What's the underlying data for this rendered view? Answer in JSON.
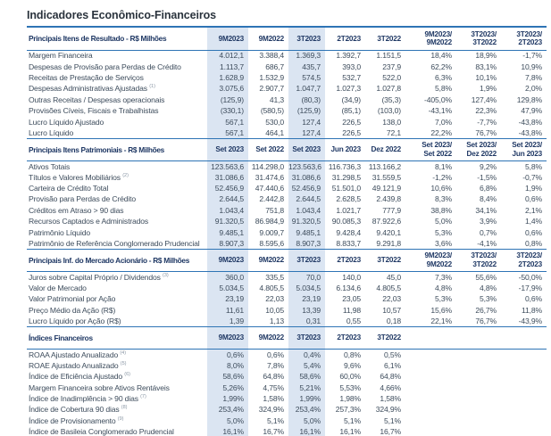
{
  "title": "Indicadores Econômico-Financeiros",
  "colors": {
    "accent_rule": "#2e74b5",
    "column_stripe": "#dbe5f2",
    "header_text": "#1f3864",
    "body_text": "#3d4c5c"
  },
  "table": {
    "striped_column_indexes": [
      0,
      2
    ],
    "sections": [
      {
        "header": "Principais Itens de Resultado - R$ Milhões",
        "columns": [
          [
            "9M2023"
          ],
          [
            "9M2022"
          ],
          [
            "3T2023"
          ],
          [
            "2T2023"
          ],
          [
            "3T2022"
          ],
          [
            "9M2023/",
            "9M2022"
          ],
          [
            "3T2023/",
            "3T2022"
          ],
          [
            "3T2023/",
            "2T2023"
          ]
        ],
        "rows": [
          {
            "label": "Margem Financeira",
            "sup": "",
            "values": [
              "4.012,1",
              "3.388,4",
              "1.369,3",
              "1.392,7",
              "1.151,5",
              "18,4%",
              "18,9%",
              "-1,7%"
            ]
          },
          {
            "label": "Despesas de Provisão para Perdas de Crédito",
            "sup": "",
            "values": [
              "1.113,7",
              "686,7",
              "435,7",
              "393,0",
              "237,9",
              "62,2%",
              "83,1%",
              "10,9%"
            ]
          },
          {
            "label": "Receitas de Prestação de Serviços",
            "sup": "",
            "values": [
              "1.628,9",
              "1.532,9",
              "574,5",
              "532,7",
              "522,0",
              "6,3%",
              "10,1%",
              "7,8%"
            ]
          },
          {
            "label": "Despesas Administrativas Ajustadas",
            "sup": "(1)",
            "values": [
              "3.075,6",
              "2.907,7",
              "1.047,7",
              "1.027,3",
              "1.027,8",
              "5,8%",
              "1,9%",
              "2,0%"
            ]
          },
          {
            "label": "Outras Receitas / Despesas operacionais",
            "sup": "",
            "values": [
              "(125,9)",
              "41,3",
              "(80,3)",
              "(34,9)",
              "(35,3)",
              "-405,0%",
              "127,4%",
              "129,8%"
            ]
          },
          {
            "label": "Provisões Cíveis, Fiscais e Trabalhistas",
            "sup": "",
            "values": [
              "(330,1)",
              "(580,5)",
              "(125,9)",
              "(85,1)",
              "(103,0)",
              "-43,1%",
              "22,3%",
              "47,9%"
            ]
          },
          {
            "label": "Lucro Líquido Ajustado",
            "sup": "",
            "values": [
              "567,1",
              "530,0",
              "127,4",
              "226,5",
              "138,0",
              "7,0%",
              "-7,7%",
              "-43,8%"
            ]
          },
          {
            "label": "Lucro Líquido",
            "sup": "",
            "values": [
              "567,1",
              "464,1",
              "127,4",
              "226,5",
              "72,1",
              "22,2%",
              "76,7%",
              "-43,8%"
            ]
          }
        ]
      },
      {
        "header": "Principais Itens Patrimoniais - R$ Milhões",
        "columns": [
          [
            "Set 2023"
          ],
          [
            "Set 2022"
          ],
          [
            "Set 2023"
          ],
          [
            "Jun 2023"
          ],
          [
            "Dez 2022"
          ],
          [
            "Set 2023/",
            "Set 2022"
          ],
          [
            "Set 2023/",
            "Dez 2022"
          ],
          [
            "Set 2023/",
            "Jun 2023"
          ]
        ],
        "rows": [
          {
            "label": "Ativos Totais",
            "sup": "",
            "values": [
              "123.563,6",
              "114.298,0",
              "123.563,6",
              "116.736,3",
              "113.166,2",
              "8,1%",
              "9,2%",
              "5,8%"
            ]
          },
          {
            "label": "Títulos e Valores Mobiliários",
            "sup": "(2)",
            "values": [
              "31.086,6",
              "31.474,6",
              "31.086,6",
              "31.298,5",
              "31.559,5",
              "-1,2%",
              "-1,5%",
              "-0,7%"
            ]
          },
          {
            "label": "Carteira de Crédito Total",
            "sup": "",
            "values": [
              "52.456,9",
              "47.440,6",
              "52.456,9",
              "51.501,0",
              "49.121,9",
              "10,6%",
              "6,8%",
              "1,9%"
            ]
          },
          {
            "label": "Provisão para Perdas de Crédito",
            "sup": "",
            "values": [
              "2.644,5",
              "2.442,8",
              "2.644,5",
              "2.628,5",
              "2.439,8",
              "8,3%",
              "8,4%",
              "0,6%"
            ]
          },
          {
            "label": "Créditos em Atraso > 90 dias",
            "sup": "",
            "values": [
              "1.043,4",
              "751,8",
              "1.043,4",
              "1.021,7",
              "777,9",
              "38,8%",
              "34,1%",
              "2,1%"
            ]
          },
          {
            "label": "Recursos Captados e Administrados",
            "sup": "",
            "values": [
              "91.320,5",
              "86.984,9",
              "91.320,5",
              "90.085,3",
              "87.922,6",
              "5,0%",
              "3,9%",
              "1,4%"
            ]
          },
          {
            "label": "Patrimônio Líquido",
            "sup": "",
            "values": [
              "9.485,1",
              "9.009,7",
              "9.485,1",
              "9.428,4",
              "9.420,1",
              "5,3%",
              "0,7%",
              "0,6%"
            ]
          },
          {
            "label": "Patrimônio de Referência Conglomerado Prudencial",
            "sup": "",
            "values": [
              "8.907,3",
              "8.595,6",
              "8.907,3",
              "8.833,7",
              "9.291,8",
              "3,6%",
              "-4,1%",
              "0,8%"
            ]
          }
        ]
      },
      {
        "header": "Principais Inf. do Mercado Acionário - R$ Milhões",
        "columns": [
          [
            "9M2023"
          ],
          [
            "9M2022"
          ],
          [
            "3T2023"
          ],
          [
            "2T2023"
          ],
          [
            "3T2022"
          ],
          [
            "9M2023/",
            "9M2022"
          ],
          [
            "3T2023/",
            "3T2022"
          ],
          [
            "3T2023/",
            "2T2023"
          ]
        ],
        "rows": [
          {
            "label": "Juros sobre Capital Próprio / Dividendos",
            "sup": "(3)",
            "values": [
              "360,0",
              "335,5",
              "70,0",
              "140,0",
              "45,0",
              "7,3%",
              "55,6%",
              "-50,0%"
            ]
          },
          {
            "label": "Valor de Mercado",
            "sup": "",
            "values": [
              "5.034,5",
              "4.805,5",
              "5.034,5",
              "6.134,6",
              "4.805,5",
              "4,8%",
              "4,8%",
              "-17,9%"
            ]
          },
          {
            "label": "Valor Patrimonial por Ação",
            "sup": "",
            "values": [
              "23,19",
              "22,03",
              "23,19",
              "23,05",
              "22,03",
              "5,3%",
              "5,3%",
              "0,6%"
            ]
          },
          {
            "label": "Preço Médio da Ação (R$)",
            "sup": "",
            "values": [
              "11,61",
              "10,05",
              "13,39",
              "11,98",
              "10,57",
              "15,6%",
              "26,7%",
              "11,8%"
            ]
          },
          {
            "label": "Lucro Líquido por Ação (R$)",
            "sup": "",
            "values": [
              "1,39",
              "1,13",
              "0,31",
              "0,55",
              "0,18",
              "22,1%",
              "76,7%",
              "-43,9%"
            ]
          }
        ]
      },
      {
        "header": "Índices Financeiros",
        "columns": [
          [
            "9M2023"
          ],
          [
            "9M2022"
          ],
          [
            "3T2023"
          ],
          [
            "2T2023"
          ],
          [
            "3T2022"
          ],
          [
            ""
          ],
          [
            ""
          ],
          [
            ""
          ]
        ],
        "rows": [
          {
            "label": "ROAA  Ajustado Anualizado",
            "sup": "(4)",
            "values": [
              "0,6%",
              "0,6%",
              "0,4%",
              "0,8%",
              "0,5%",
              "",
              "",
              ""
            ]
          },
          {
            "label": "ROAE  Ajustado Anualizado",
            "sup": "(5)",
            "values": [
              "8,0%",
              "7,8%",
              "5,4%",
              "9,6%",
              "6,1%",
              "",
              "",
              ""
            ]
          },
          {
            "label": "Índice de Eficiência Ajustado",
            "sup": "(6)",
            "values": [
              "58,6%",
              "64,8%",
              "58,6%",
              "60,0%",
              "64,8%",
              "",
              "",
              ""
            ]
          },
          {
            "label": "Margem Financeira sobre Ativos Rentáveis",
            "sup": "",
            "values": [
              "5,26%",
              "4,75%",
              "5,21%",
              "5,53%",
              "4,66%",
              "",
              "",
              ""
            ]
          },
          {
            "label": "Índice de Inadimplência > 90 dias",
            "sup": "(7)",
            "values": [
              "1,99%",
              "1,58%",
              "1,99%",
              "1,98%",
              "1,58%",
              "",
              "",
              ""
            ]
          },
          {
            "label": "Índice de Cobertura 90 dias",
            "sup": "(8)",
            "values": [
              "253,4%",
              "324,9%",
              "253,4%",
              "257,3%",
              "324,9%",
              "",
              "",
              ""
            ]
          },
          {
            "label": "Índice de Provisionamento",
            "sup": "(9)",
            "values": [
              "5,0%",
              "5,1%",
              "5,0%",
              "5,1%",
              "5,1%",
              "",
              "",
              ""
            ]
          },
          {
            "label": "Índice de Basileia Conglomerado Prudencial",
            "sup": "",
            "values": [
              "16,1%",
              "16,7%",
              "16,1%",
              "16,1%",
              "16,7%",
              "",
              "",
              ""
            ]
          }
        ]
      }
    ]
  }
}
